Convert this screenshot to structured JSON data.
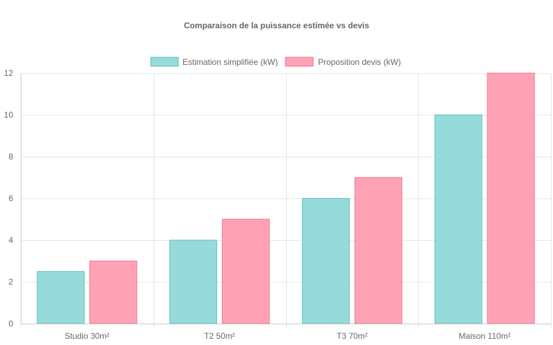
{
  "chart_data": {
    "type": "bar",
    "title": "Comparaison de la puissance estimée vs devis",
    "categories": [
      "Studio 30m²",
      "T2 50m²",
      "T3 70m²",
      "Maison 110m²"
    ],
    "series": [
      {
        "name": "Estimation simplifiée (kW)",
        "values": [
          2.5,
          4,
          6,
          10
        ],
        "color": "#96dad9",
        "border": "#5cc3c0"
      },
      {
        "name": "Proposition devis (kW)",
        "values": [
          3,
          5,
          7,
          12
        ],
        "color": "#ffa2b5",
        "border": "#f47391"
      }
    ],
    "ylim": [
      0,
      12
    ],
    "yticks": [
      0,
      2,
      4,
      6,
      8,
      10,
      12
    ],
    "grid": true,
    "legend_position": "top"
  }
}
